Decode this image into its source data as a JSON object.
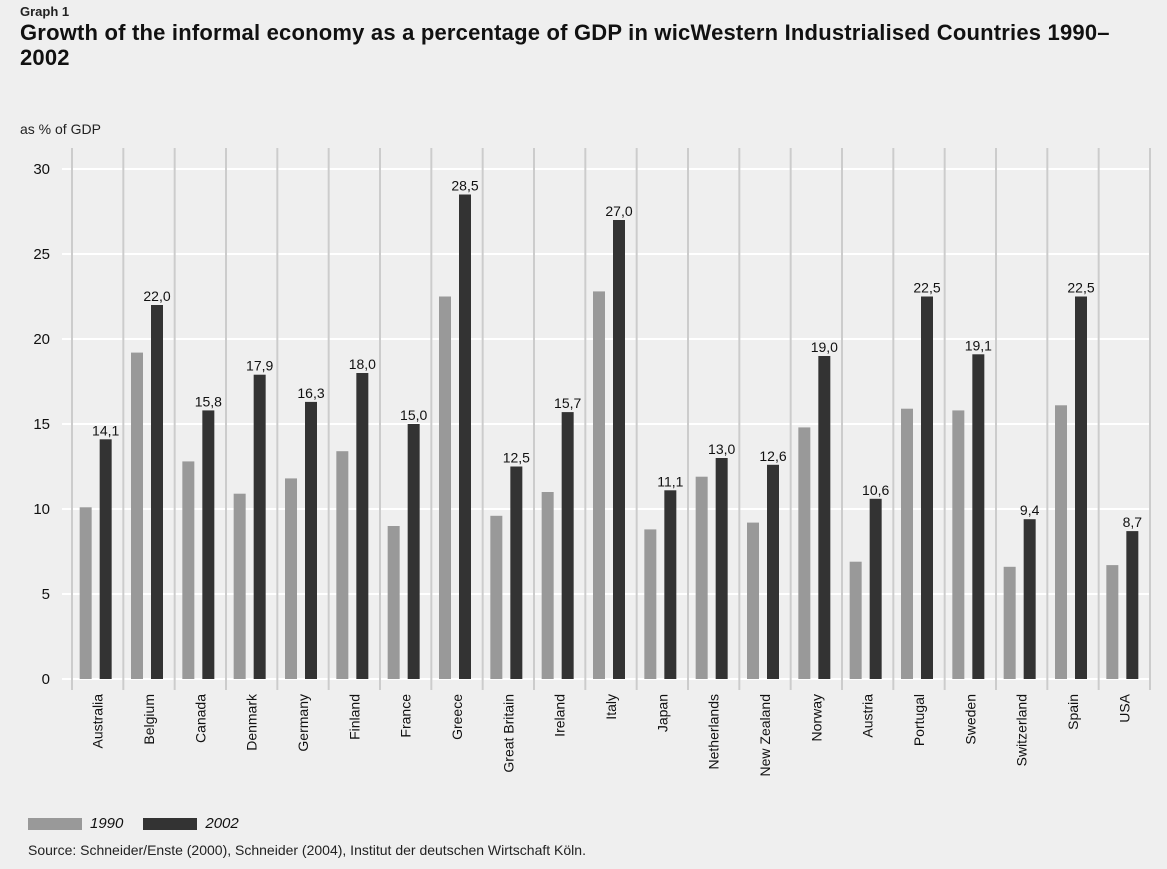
{
  "graph_label": "Graph 1",
  "title": "Growth of the informal economy as a percentage of GDP in wicWestern Industrialised Countries 1990–2002",
  "colors": {
    "background": "#efefef",
    "series_1990": "#999999",
    "series_2002": "#333333",
    "grid": "#ffffff",
    "column_sep": "#cccccc"
  },
  "chart_data": {
    "type": "bar",
    "ylabel": "as % of GDP",
    "ylim": [
      0,
      30
    ],
    "yticks": [
      0,
      5,
      10,
      15,
      20,
      25,
      30
    ],
    "grid": true,
    "legend_position": "bottom-left",
    "categories": [
      "Australia",
      "Belgium",
      "Canada",
      "Denmark",
      "Germany",
      "Finland",
      "France",
      "Greece",
      "Great Britain",
      "Ireland",
      "Italy",
      "Japan",
      "Netherlands",
      "New Zealand",
      "Norway",
      "Austria",
      "Portugal",
      "Sweden",
      "Switzerland",
      "Spain",
      "USA"
    ],
    "series": [
      {
        "name": "1990",
        "values": [
          10.1,
          19.2,
          12.8,
          10.9,
          11.8,
          13.4,
          9.0,
          22.5,
          9.6,
          11.0,
          22.8,
          8.8,
          11.9,
          9.2,
          14.8,
          6.9,
          15.9,
          15.8,
          6.6,
          16.1,
          6.7
        ]
      },
      {
        "name": "2002",
        "values": [
          14.1,
          22.0,
          15.8,
          17.9,
          16.3,
          18.0,
          15.0,
          28.5,
          12.5,
          15.7,
          27.0,
          11.1,
          13.0,
          12.6,
          19.0,
          10.6,
          22.5,
          19.1,
          9.4,
          22.5,
          8.7
        ]
      }
    ],
    "data_labels_2002": [
      "14,1",
      "22,0",
      "15,8",
      "17,9",
      "16,3",
      "18,0",
      "15,0",
      "28,5",
      "12,5",
      "15,7",
      "27,0",
      "11,1",
      "13,0",
      "12,6",
      "19,0",
      "10,6",
      "22,5",
      "19,1",
      "9,4",
      "22,5",
      "8,7"
    ]
  },
  "source": "Source: Schneider/Enste (2000), Schneider (2004), Institut der deutschen Wirtschaft Köln."
}
